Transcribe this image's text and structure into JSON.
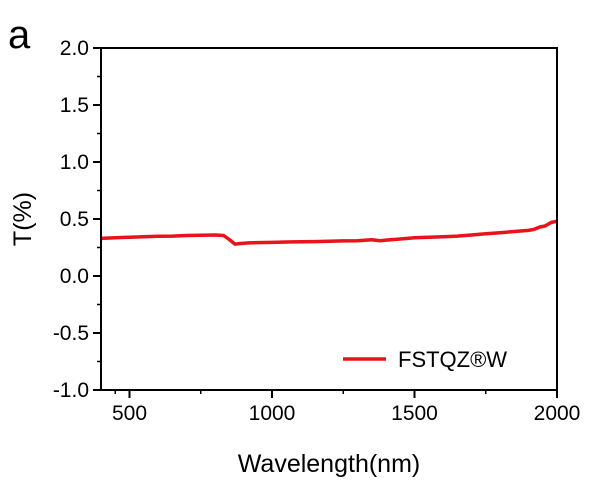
{
  "panel_label": "a",
  "chart_data": {
    "type": "line",
    "title": "",
    "xlabel": "Wavelength(nm)",
    "ylabel": "T(%)",
    "xlim": [
      400,
      2000
    ],
    "ylim": [
      -1.0,
      2.0
    ],
    "x_ticks": [
      500,
      1000,
      1500,
      2000
    ],
    "x_tick_labels": [
      "500",
      "1000",
      "1500",
      "2000"
    ],
    "y_ticks": [
      -1.0,
      -0.5,
      0.0,
      0.5,
      1.0,
      1.5,
      2.0
    ],
    "y_tick_labels": [
      "-1.0",
      "-0.5",
      "0.0",
      "0.5",
      "1.0",
      "1.5",
      "2.0"
    ],
    "grid": false,
    "legend_position": "bottom-right",
    "series": [
      {
        "name": "FSTQZ®W",
        "color": "#e8131b",
        "x": [
          400,
          450,
          500,
          550,
          600,
          650,
          700,
          750,
          800,
          830,
          850,
          870,
          890,
          920,
          950,
          1000,
          1050,
          1100,
          1150,
          1200,
          1250,
          1300,
          1350,
          1380,
          1400,
          1450,
          1500,
          1550,
          1600,
          1650,
          1700,
          1750,
          1800,
          1850,
          1900,
          1920,
          1940,
          1960,
          1980,
          2000
        ],
        "y": [
          0.33,
          0.335,
          0.34,
          0.345,
          0.348,
          0.35,
          0.355,
          0.357,
          0.36,
          0.355,
          0.32,
          0.28,
          0.285,
          0.29,
          0.293,
          0.295,
          0.298,
          0.3,
          0.302,
          0.305,
          0.308,
          0.31,
          0.318,
          0.31,
          0.315,
          0.325,
          0.335,
          0.34,
          0.345,
          0.35,
          0.36,
          0.37,
          0.38,
          0.39,
          0.4,
          0.41,
          0.43,
          0.44,
          0.47,
          0.48
        ]
      }
    ]
  }
}
